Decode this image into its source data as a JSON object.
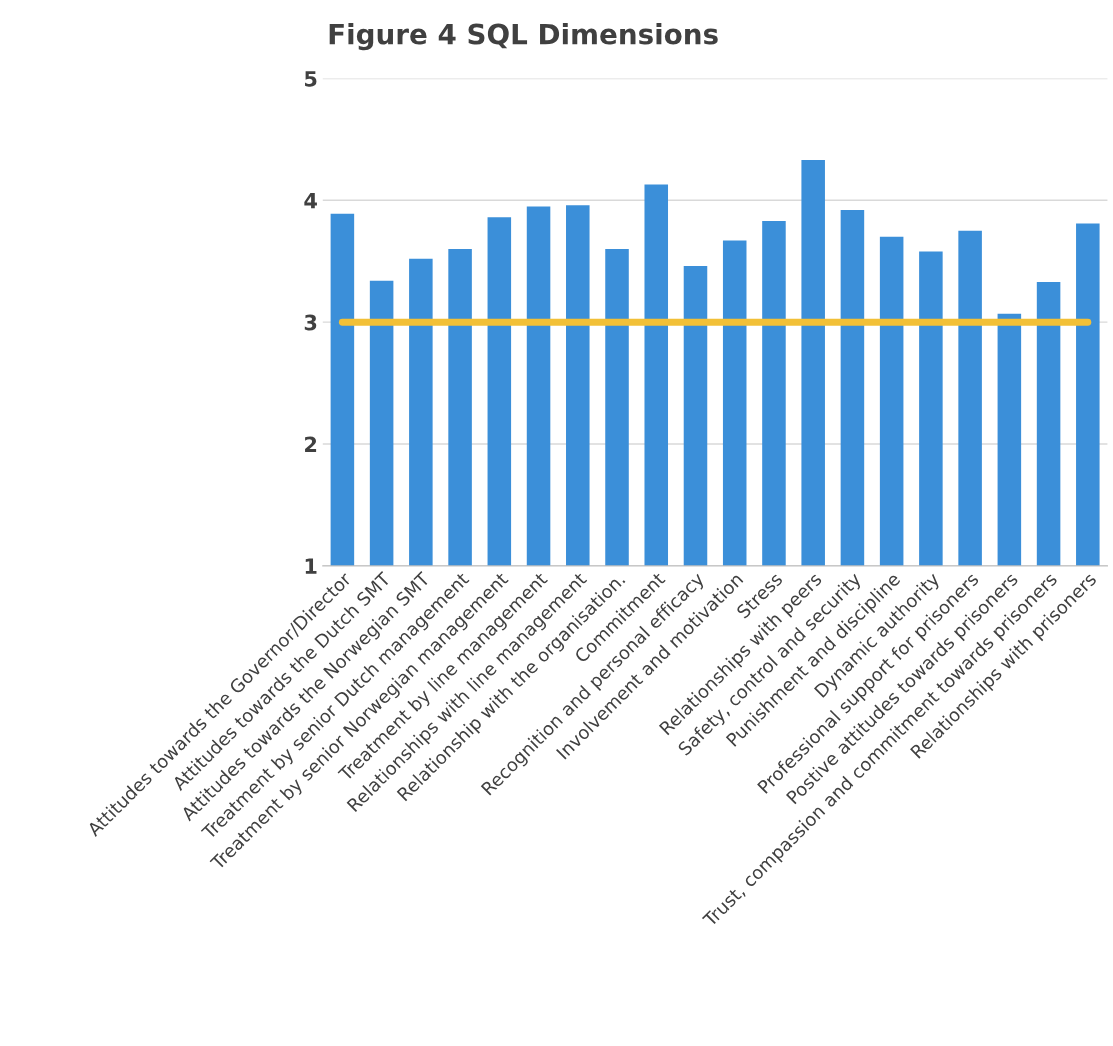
{
  "chart_data": {
    "type": "bar",
    "title": "Figure 4 SQL Dimensions",
    "categories": [
      "Attitudes towards the Governor/Director",
      "Attitudes towards the Dutch SMT",
      "Attitudes towards the Norwegian SMT",
      "Treatment by senior Dutch management",
      "Treatment by senior Norwegian management",
      "Treatment by line management",
      "Relationships with line management",
      "Relationship with the organisation.",
      "Commitment",
      "Recognition and personal efficacy",
      "Involvement and motivation",
      "Stress",
      "Relationships with peers",
      "Safety, control and security",
      "Punishment and discipline",
      "Dynamic authority",
      "Professional support for prisoners",
      "Postive attitudes towards prisoners",
      "Trust, compassion and commitment towards prisoners",
      "Relationships with prisoners"
    ],
    "values": [
      3.89,
      3.34,
      3.52,
      3.6,
      3.86,
      3.95,
      3.96,
      3.6,
      4.13,
      3.46,
      3.67,
      3.83,
      4.33,
      3.92,
      3.7,
      3.58,
      3.75,
      3.07,
      3.33,
      3.81
    ],
    "color": "#3b8fd9",
    "ylim": [
      1,
      5
    ],
    "yticks": [
      1,
      2,
      3,
      4,
      5
    ],
    "grid": "y",
    "ref_lines": [
      {
        "axis": "y",
        "value": 3,
        "color": "#f2c037"
      }
    ]
  }
}
